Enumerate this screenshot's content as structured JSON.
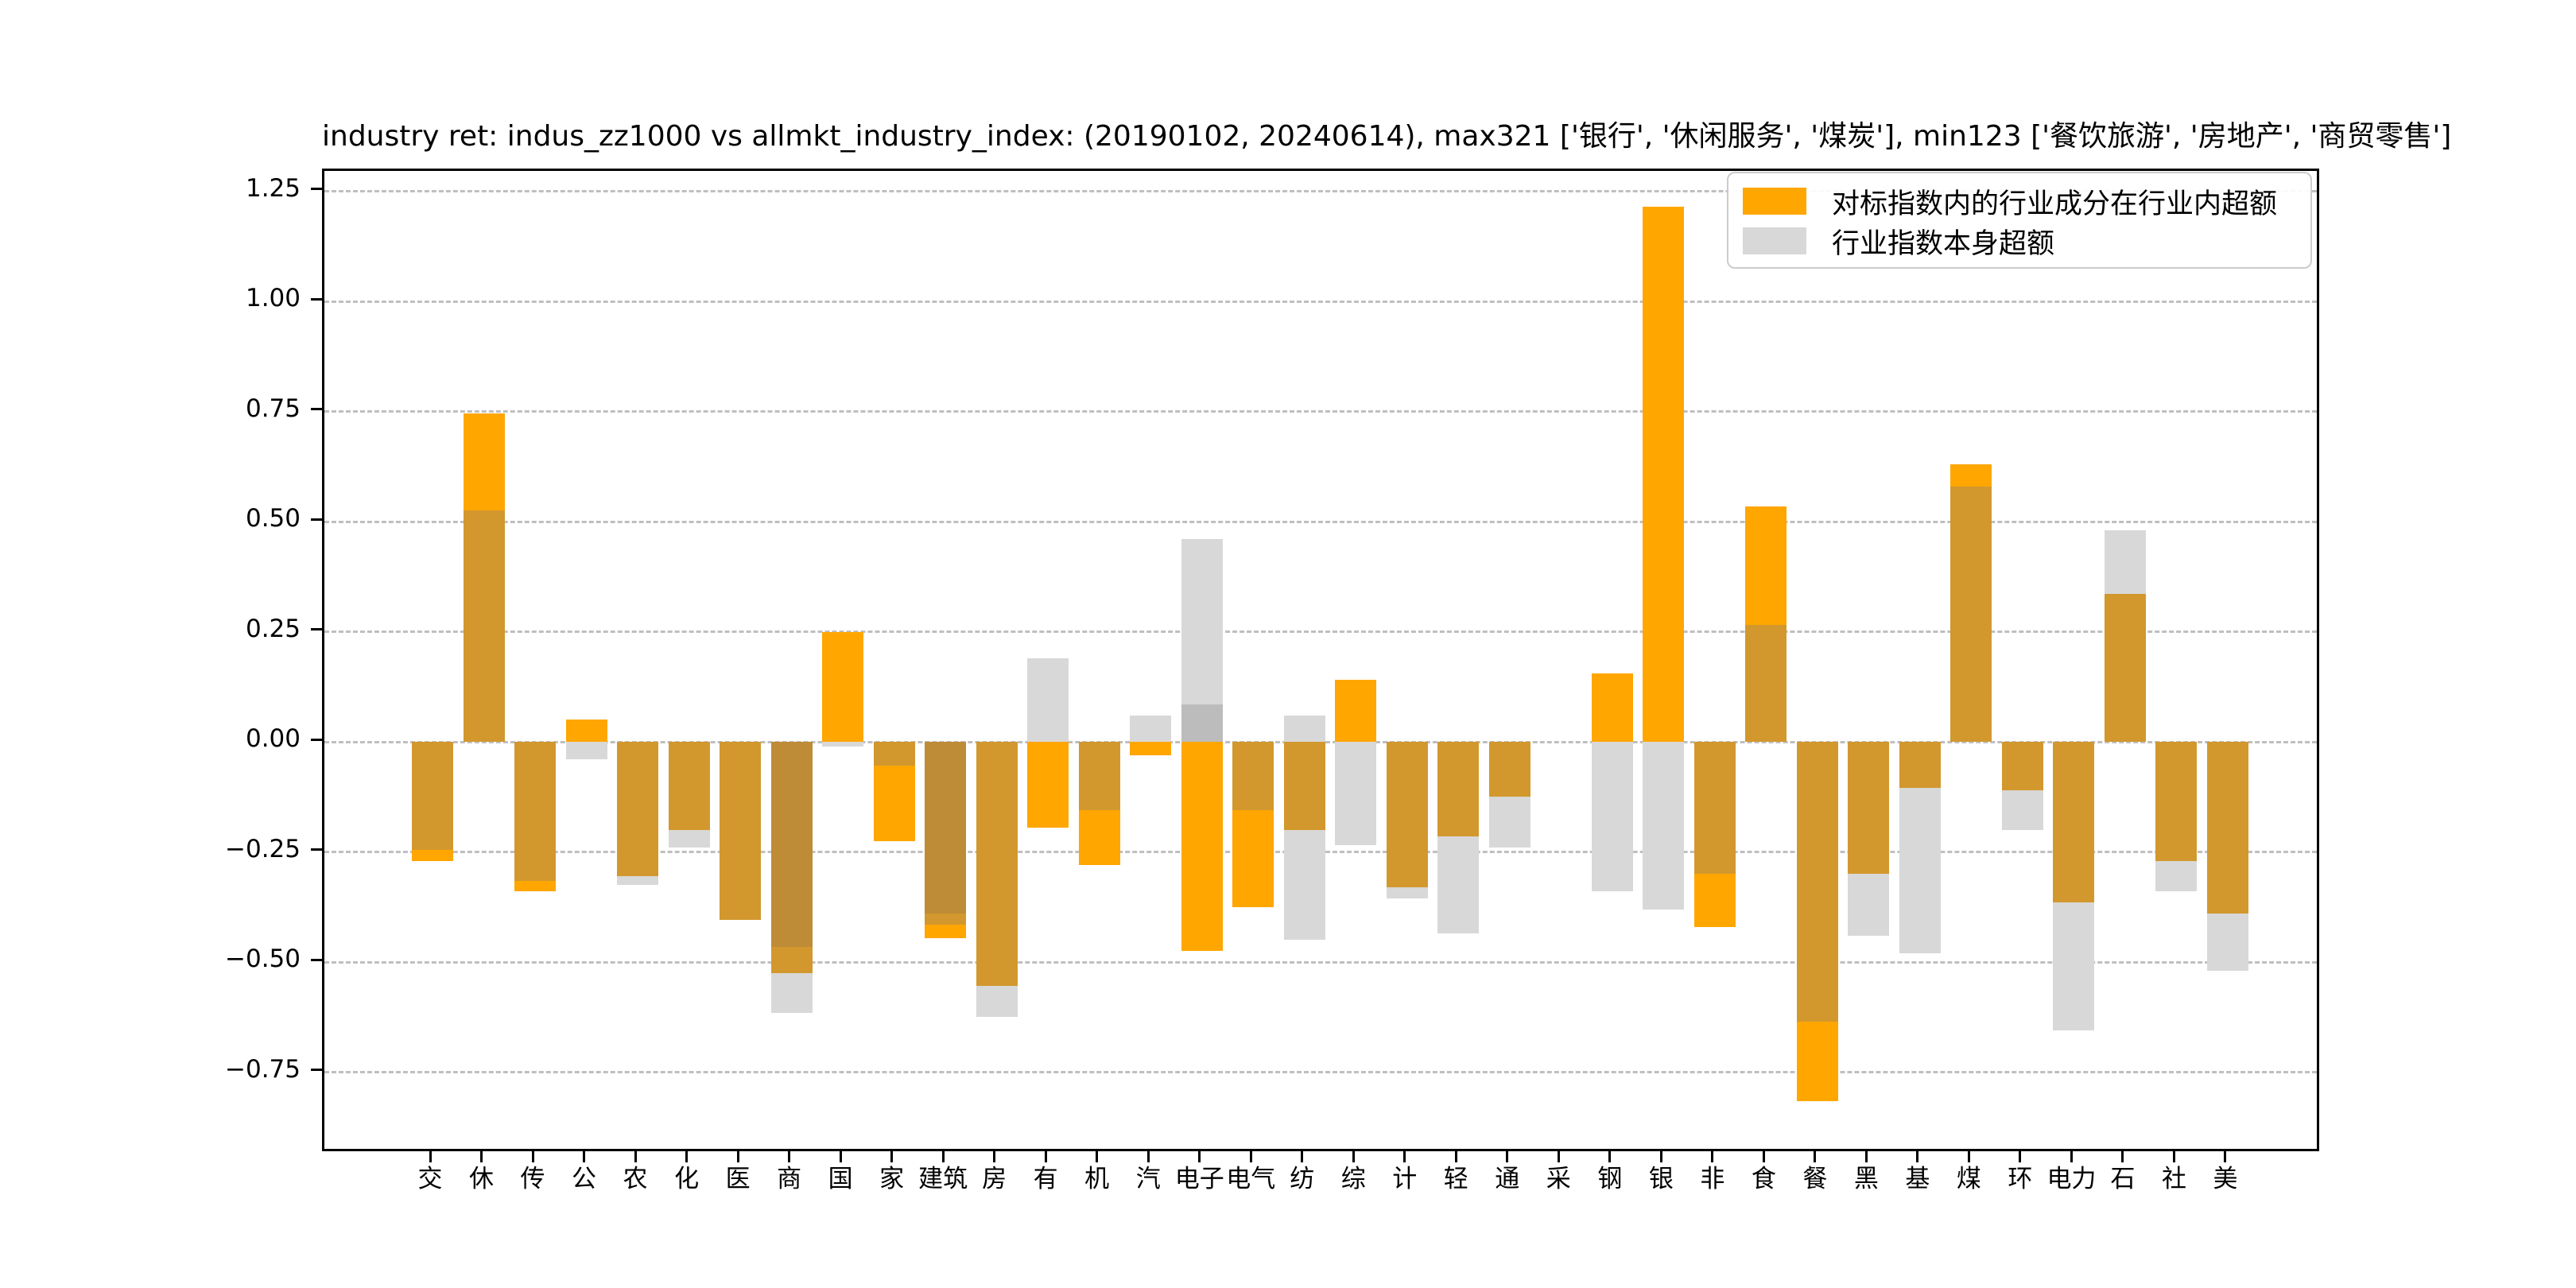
{
  "chart_data": {
    "type": "bar",
    "title": "industry ret: indus_zz1000 vs allmkt_industry_index: (20190102, 20240614), max321 ['银行', '休闲服务', '煤炭'], min123 ['餐饮旅游', '房地产', '商贸零售']",
    "categories": [
      "交",
      "休",
      "传",
      "公",
      "农",
      "化",
      "医",
      "商",
      "国",
      "家",
      "建筑",
      "房",
      "有",
      "机",
      "汽",
      "电子",
      "电气",
      "纺",
      "综",
      "计",
      "轻",
      "通",
      "采",
      "钢",
      "银",
      "非",
      "食",
      "餐",
      "黑",
      "基",
      "煤",
      "环",
      "电力",
      "石",
      "社",
      "美"
    ],
    "series": [
      {
        "name": "对标指数内的行业成分在行业内超额",
        "color": "#FFA600",
        "values": [
          -0.27,
          0.745,
          -0.34,
          0.05,
          -0.305,
          -0.2,
          -0.405,
          -0.525,
          0.25,
          -0.225,
          -0.445,
          -0.555,
          -0.195,
          -0.28,
          -0.03,
          -0.475,
          -0.375,
          -0.2,
          0.14,
          -0.33,
          -0.215,
          -0.125,
          0,
          0.155,
          1.215,
          -0.42,
          0.535,
          -0.815,
          -0.3,
          -0.105,
          0.63,
          -0.11,
          -0.365,
          0.335,
          -0.27,
          -0.39
        ]
      },
      {
        "name": "行业指数本身超额",
        "color": "#D8D8D8",
        "values": [
          -0.245,
          0.525,
          -0.315,
          -0.04,
          -0.325,
          -0.24,
          -0.405,
          -0.615,
          -0.01,
          -0.055,
          -0.39,
          -0.625,
          0.19,
          -0.155,
          0.06,
          0.46,
          -0.155,
          -0.45,
          -0.235,
          -0.355,
          -0.435,
          -0.24,
          0,
          -0.34,
          -0.38,
          -0.3,
          0.265,
          -0.635,
          -0.44,
          -0.48,
          0.58,
          -0.2,
          -0.655,
          0.48,
          -0.34,
          -0.52
        ]
      }
    ],
    "gray_extra_values": [
      null,
      null,
      null,
      null,
      null,
      null,
      null,
      -0.465,
      null,
      null,
      -0.415,
      null,
      null,
      null,
      null,
      0.085,
      null,
      0.06,
      null,
      null,
      null,
      null,
      null,
      null,
      null,
      null,
      null,
      null,
      null,
      null,
      null,
      null,
      null,
      null,
      null,
      null
    ],
    "ylim": [
      -0.935,
      1.295
    ],
    "yticks": [
      1.25,
      1.0,
      0.75,
      0.5,
      0.25,
      0.0,
      -0.25,
      -0.5,
      -0.75
    ],
    "ytick_labels": [
      "1.25",
      "1.00",
      "0.75",
      "0.50",
      "0.25",
      "0.00",
      "−0.25",
      "−0.50",
      "−0.75"
    ],
    "grid": true,
    "legend_position": "upper right",
    "blend_colors": {
      "o": "#FFA600",
      "og": "#D2982E",
      "ogg": "#BE8B36",
      "g": "#D8D8D8",
      "gg": "#BCBCBC"
    }
  }
}
